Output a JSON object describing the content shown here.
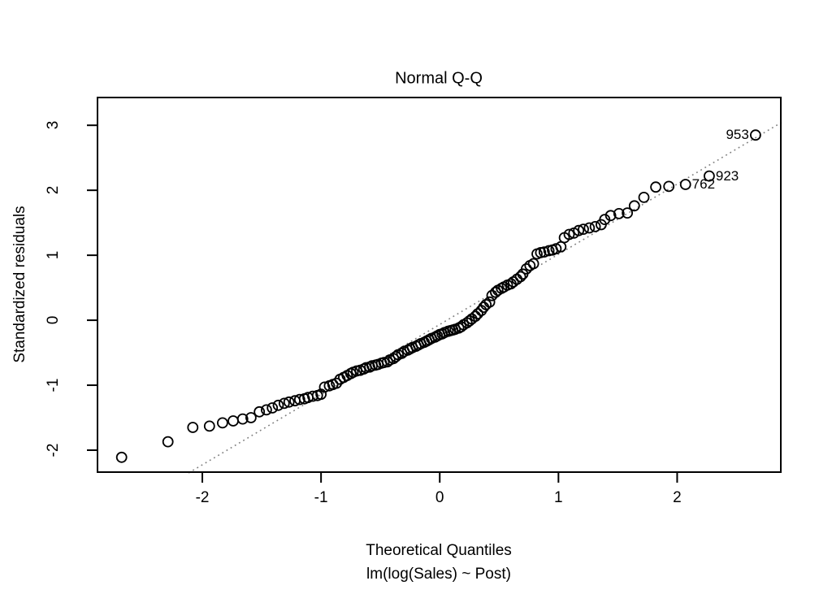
{
  "chart_data": {
    "type": "scatter",
    "title": "Normal Q-Q",
    "xlabel": "Theoretical Quantiles",
    "model_caption": "lm(log(Sales) ~ Post)",
    "ylabel": "Standardized residuals",
    "x_ticks": [
      -2,
      -1,
      0,
      1,
      2
    ],
    "y_ticks": [
      3,
      2,
      1,
      0,
      -1,
      -2
    ],
    "xlim": [
      -2.89,
      2.88
    ],
    "ylim": [
      -2.35,
      3.44
    ],
    "grid": false,
    "legend": null,
    "marker": {
      "shape": "open-circle",
      "radius_px": 6,
      "color": "#000000"
    },
    "reference_line": {
      "slope": 1.08,
      "intercept": -0.065,
      "style": "dotted",
      "color": "#7f7f7f"
    },
    "labeled_points": [
      {
        "label": "953",
        "x": 2.66,
        "y": 2.85,
        "side": "left"
      },
      {
        "label": "923",
        "x": 2.27,
        "y": 2.22,
        "side": "right"
      },
      {
        "label": "762",
        "x": 2.07,
        "y": 2.09,
        "side": "right"
      }
    ],
    "points": [
      [
        -2.68,
        -2.11
      ],
      [
        -2.29,
        -1.87
      ],
      [
        -2.08,
        -1.65
      ],
      [
        -1.94,
        -1.63
      ],
      [
        -1.83,
        -1.58
      ],
      [
        -1.74,
        -1.55
      ],
      [
        -1.66,
        -1.52
      ],
      [
        -1.59,
        -1.5
      ],
      [
        -1.52,
        -1.41
      ],
      [
        -1.46,
        -1.38
      ],
      [
        -1.41,
        -1.35
      ],
      [
        -1.36,
        -1.31
      ],
      [
        -1.31,
        -1.28
      ],
      [
        -1.27,
        -1.26
      ],
      [
        -1.22,
        -1.24
      ],
      [
        -1.18,
        -1.22
      ],
      [
        -1.14,
        -1.21
      ],
      [
        -1.11,
        -1.19
      ],
      [
        -1.07,
        -1.17
      ],
      [
        -1.03,
        -1.16
      ],
      [
        -1.0,
        -1.14
      ],
      [
        -0.97,
        -1.03
      ],
      [
        -0.93,
        -1.01
      ],
      [
        -0.9,
        -0.99
      ],
      [
        -0.87,
        -0.97
      ],
      [
        -0.84,
        -0.91
      ],
      [
        -0.81,
        -0.88
      ],
      [
        -0.78,
        -0.85
      ],
      [
        -0.75,
        -0.82
      ],
      [
        -0.73,
        -0.8
      ],
      [
        -0.7,
        -0.78
      ],
      [
        -0.67,
        -0.77
      ],
      [
        -0.64,
        -0.75
      ],
      [
        -0.62,
        -0.73
      ],
      [
        -0.59,
        -0.72
      ],
      [
        -0.57,
        -0.7
      ],
      [
        -0.54,
        -0.69
      ],
      [
        -0.52,
        -0.68
      ],
      [
        -0.49,
        -0.66
      ],
      [
        -0.47,
        -0.65
      ],
      [
        -0.44,
        -0.64
      ],
      [
        -0.42,
        -0.61
      ],
      [
        -0.39,
        -0.59
      ],
      [
        -0.37,
        -0.56
      ],
      [
        -0.35,
        -0.53
      ],
      [
        -0.32,
        -0.51
      ],
      [
        -0.3,
        -0.48
      ],
      [
        -0.27,
        -0.46
      ],
      [
        -0.25,
        -0.44
      ],
      [
        -0.23,
        -0.42
      ],
      [
        -0.2,
        -0.4
      ],
      [
        -0.18,
        -0.38
      ],
      [
        -0.16,
        -0.36
      ],
      [
        -0.13,
        -0.34
      ],
      [
        -0.11,
        -0.32
      ],
      [
        -0.09,
        -0.3
      ],
      [
        -0.07,
        -0.28
      ],
      [
        -0.04,
        -0.26
      ],
      [
        -0.02,
        -0.24
      ],
      [
        0.0,
        -0.22
      ],
      [
        0.02,
        -0.21
      ],
      [
        0.04,
        -0.19
      ],
      [
        0.07,
        -0.17
      ],
      [
        0.09,
        -0.16
      ],
      [
        0.11,
        -0.15
      ],
      [
        0.13,
        -0.14
      ],
      [
        0.16,
        -0.12
      ],
      [
        0.18,
        -0.1
      ],
      [
        0.2,
        -0.07
      ],
      [
        0.23,
        -0.04
      ],
      [
        0.25,
        -0.01
      ],
      [
        0.27,
        0.02
      ],
      [
        0.3,
        0.06
      ],
      [
        0.32,
        0.1
      ],
      [
        0.35,
        0.15
      ],
      [
        0.37,
        0.2
      ],
      [
        0.39,
        0.24
      ],
      [
        0.42,
        0.28
      ],
      [
        0.44,
        0.38
      ],
      [
        0.47,
        0.43
      ],
      [
        0.49,
        0.46
      ],
      [
        0.52,
        0.49
      ],
      [
        0.54,
        0.51
      ],
      [
        0.57,
        0.54
      ],
      [
        0.6,
        0.56
      ],
      [
        0.62,
        0.59
      ],
      [
        0.65,
        0.63
      ],
      [
        0.68,
        0.67
      ],
      [
        0.7,
        0.71
      ],
      [
        0.73,
        0.79
      ],
      [
        0.76,
        0.84
      ],
      [
        0.79,
        0.87
      ],
      [
        0.82,
        1.02
      ],
      [
        0.85,
        1.04
      ],
      [
        0.88,
        1.05
      ],
      [
        0.92,
        1.07
      ],
      [
        0.95,
        1.08
      ],
      [
        0.98,
        1.1
      ],
      [
        1.02,
        1.13
      ],
      [
        1.05,
        1.27
      ],
      [
        1.09,
        1.32
      ],
      [
        1.13,
        1.34
      ],
      [
        1.17,
        1.38
      ],
      [
        1.21,
        1.4
      ],
      [
        1.26,
        1.42
      ],
      [
        1.31,
        1.44
      ],
      [
        1.36,
        1.47
      ],
      [
        1.39,
        1.55
      ],
      [
        1.44,
        1.61
      ],
      [
        1.51,
        1.64
      ],
      [
        1.58,
        1.65
      ],
      [
        1.64,
        1.76
      ],
      [
        1.72,
        1.89
      ],
      [
        1.82,
        2.05
      ],
      [
        1.93,
        2.06
      ],
      [
        2.07,
        2.09
      ],
      [
        2.27,
        2.22
      ],
      [
        2.66,
        2.85
      ]
    ]
  }
}
